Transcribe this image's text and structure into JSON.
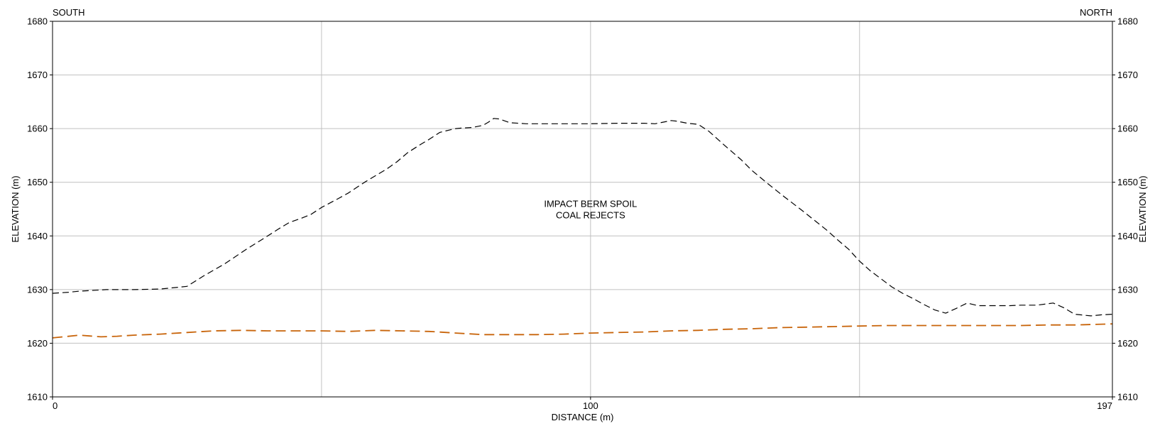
{
  "chart_data": {
    "type": "line",
    "title": "",
    "xlabel": "DISTANCE (m)",
    "ylabel": "ELEVATION (m)",
    "ylabel_right": "ELEVATION (m)",
    "xlim": [
      0,
      197
    ],
    "ylim": [
      1610,
      1680
    ],
    "x_ticks": [
      0,
      100,
      197
    ],
    "y_ticks": [
      1610,
      1620,
      1630,
      1640,
      1650,
      1660,
      1670,
      1680
    ],
    "grid": true,
    "direction_left": "SOUTH",
    "direction_right": "NORTH",
    "annotation_lines": [
      "IMPACT BERM SPOIL",
      "COAL REJECTS"
    ],
    "annotation_at": {
      "x": 100,
      "y": 1645
    },
    "series": [
      {
        "color": "#000000",
        "style": "dashed",
        "x": [
          0,
          3,
          5,
          10,
          15,
          20,
          22,
          25,
          28,
          32,
          36,
          40,
          42,
          44,
          46,
          48,
          50,
          53,
          55,
          58,
          60,
          62,
          64,
          66,
          68,
          70,
          72,
          74,
          75,
          76,
          78,
          80,
          81,
          82,
          83,
          85,
          88,
          90,
          95,
          100,
          105,
          110,
          112,
          113,
          115,
          116,
          118,
          120,
          122,
          125,
          128,
          130,
          133,
          136,
          139,
          142,
          144,
          146,
          148,
          150,
          152,
          154,
          156,
          158,
          160,
          162,
          164,
          166,
          168,
          170,
          172,
          174,
          176,
          178,
          180,
          183,
          186,
          188,
          190,
          193,
          195,
          197
        ],
        "y": [
          1629.3,
          1629.5,
          1629.7,
          1630.0,
          1630.0,
          1630.1,
          1630.3,
          1630.6,
          1632.5,
          1634.8,
          1637.5,
          1640.0,
          1641.3,
          1642.5,
          1643.2,
          1644.0,
          1645.3,
          1646.9,
          1648.0,
          1650.0,
          1651.2,
          1652.4,
          1653.8,
          1655.5,
          1656.8,
          1658.0,
          1659.3,
          1659.8,
          1660.0,
          1660.1,
          1660.2,
          1660.6,
          1661.2,
          1661.9,
          1661.8,
          1661.1,
          1660.9,
          1660.9,
          1660.9,
          1660.9,
          1661.0,
          1661.0,
          1660.9,
          1661.1,
          1661.5,
          1661.4,
          1661.0,
          1660.8,
          1659.5,
          1656.8,
          1654.2,
          1652.2,
          1649.7,
          1647.3,
          1645.0,
          1642.6,
          1641.0,
          1639.2,
          1637.5,
          1635.3,
          1633.5,
          1632.0,
          1630.5,
          1629.3,
          1628.3,
          1627.2,
          1626.2,
          1625.6,
          1626.5,
          1627.5,
          1627.0,
          1627.0,
          1627.0,
          1627.0,
          1627.1,
          1627.1,
          1627.5,
          1626.6,
          1625.4,
          1625.1,
          1625.3,
          1625.4
        ]
      },
      {
        "color": "#C8640A",
        "style": "dashed",
        "x": [
          0,
          2,
          5,
          9,
          12,
          15,
          20,
          25,
          30,
          35,
          40,
          45,
          50,
          55,
          60,
          65,
          70,
          75,
          80,
          85,
          90,
          95,
          100,
          105,
          110,
          115,
          120,
          125,
          130,
          135,
          140,
          145,
          150,
          155,
          160,
          165,
          170,
          175,
          180,
          185,
          190,
          197
        ],
        "y": [
          1621.0,
          1621.2,
          1621.5,
          1621.2,
          1621.3,
          1621.5,
          1621.7,
          1622.0,
          1622.3,
          1622.4,
          1622.3,
          1622.3,
          1622.3,
          1622.2,
          1622.4,
          1622.3,
          1622.2,
          1621.9,
          1621.6,
          1621.6,
          1621.6,
          1621.7,
          1621.9,
          1622.0,
          1622.1,
          1622.3,
          1622.4,
          1622.6,
          1622.7,
          1622.9,
          1623.0,
          1623.1,
          1623.2,
          1623.3,
          1623.3,
          1623.3,
          1623.3,
          1623.3,
          1623.3,
          1623.4,
          1623.4,
          1623.6
        ]
      }
    ]
  }
}
